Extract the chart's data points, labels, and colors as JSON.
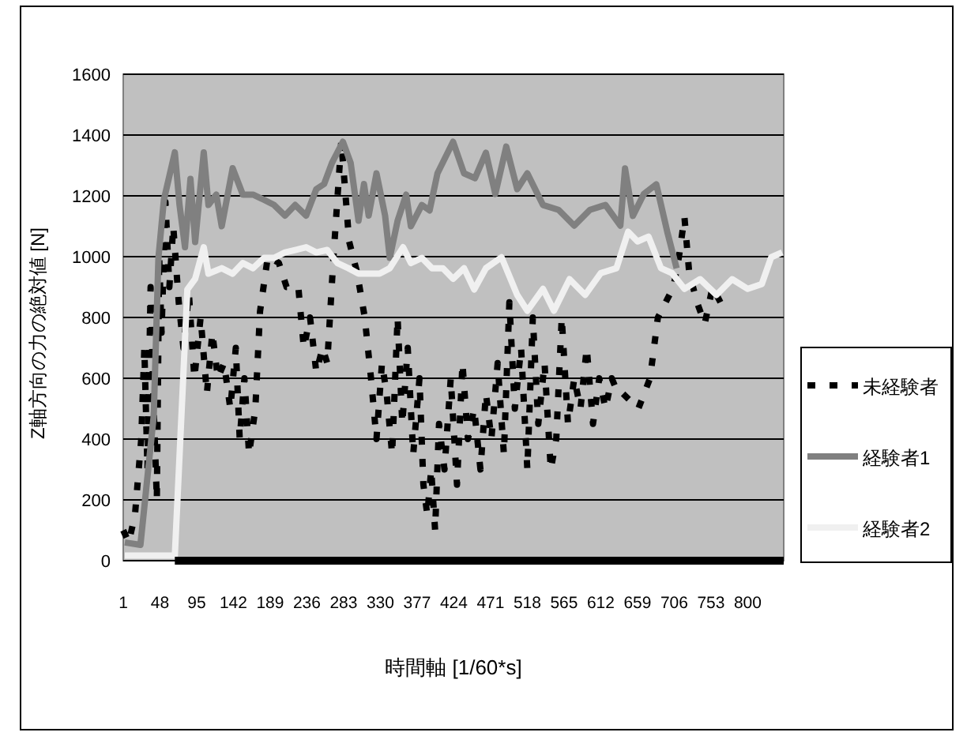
{
  "chart_data": {
    "type": "line",
    "xlabel": "時間軸 [1/60*s]",
    "ylabel": "Z軸方向の力の絶対値 [N]",
    "xlim": [
      1,
      846
    ],
    "xticks": [
      1,
      48,
      95,
      142,
      189,
      236,
      283,
      330,
      377,
      424,
      471,
      518,
      565,
      612,
      659,
      706,
      753,
      800
    ],
    "ylim": [
      0,
      1600
    ],
    "yticks": [
      0,
      200,
      400,
      600,
      800,
      1000,
      1200,
      1400,
      1600
    ],
    "grid": "y",
    "legend": "right",
    "series": [
      {
        "name": "未経験者",
        "color": "#000000",
        "line_style": "dashed",
        "x": [
          1,
          8,
          16,
          24,
          28,
          32,
          36,
          40,
          44,
          47,
          50,
          55,
          60,
          65,
          72,
          78,
          85,
          92,
          100,
          108,
          115,
          122,
          130,
          138,
          145,
          150,
          156,
          162,
          170,
          176,
          186,
          200,
          210,
          225,
          232,
          240,
          248,
          256,
          262,
          270,
          280,
          290,
          300,
          310,
          318,
          325,
          332,
          338,
          345,
          352,
          358,
          365,
          372,
          380,
          385,
          390,
          395,
          400,
          405,
          412,
          420,
          428,
          435,
          442,
          450,
          458,
          465,
          472,
          480,
          488,
          495,
          502,
          510,
          518,
          525,
          532,
          540,
          548,
          555,
          562,
          570,
          578,
          586,
          594,
          602,
          610,
          618,
          626,
          634,
          640,
          660,
          675,
          685,
          695,
          705,
          712,
          719,
          725,
          735,
          745,
          755,
          765
        ],
        "values": [
          100,
          60,
          150,
          400,
          700,
          300,
          900,
          500,
          200,
          1000,
          750,
          1180,
          900,
          1100,
          850,
          700,
          880,
          600,
          800,
          550,
          750,
          600,
          650,
          500,
          700,
          400,
          600,
          350,
          500,
          820,
          1000,
          980,
          900,
          900,
          700,
          800,
          620,
          700,
          650,
          1000,
          1380,
          1050,
          950,
          800,
          600,
          400,
          650,
          550,
          350,
          800,
          450,
          700,
          350,
          600,
          250,
          150,
          300,
          100,
          450,
          300,
          600,
          250,
          650,
          400,
          500,
          300,
          550,
          400,
          650,
          350,
          850,
          500,
          700,
          300,
          800,
          450,
          650,
          300,
          400,
          800,
          450,
          600,
          500,
          700,
          450,
          600,
          500,
          600,
          550,
          550,
          500,
          600,
          800,
          850,
          900,
          1000,
          1130,
          950,
          850,
          780,
          900,
          850
        ]
      },
      {
        "name": "経験者1",
        "color": "#808080",
        "line_style": "solid",
        "x": [
          3,
          23,
          40,
          46,
          53,
          67,
          73,
          80,
          87,
          93,
          104,
          110,
          120,
          127,
          141,
          154,
          167,
          181,
          194,
          208,
          221,
          235,
          248,
          258,
          268,
          282,
          292,
          302,
          309,
          315,
          325,
          336,
          342,
          352,
          363,
          369,
          383,
          393,
          403,
          423,
          437,
          451,
          465,
          477,
          491,
          505,
          518,
          538,
          558,
          578,
          598,
          618,
          637,
          643,
          653,
          667,
          683,
          697,
          709
        ],
        "values": [
          60,
          52,
          476,
          996,
          1187,
          1343,
          1170,
          1031,
          1256,
          1048,
          1343,
          1170,
          1204,
          1100,
          1291,
          1204,
          1204,
          1187,
          1170,
          1135,
          1170,
          1135,
          1222,
          1239,
          1308,
          1378,
          1308,
          1118,
          1239,
          1135,
          1274,
          1135,
          996,
          1118,
          1204,
          1100,
          1170,
          1152,
          1274,
          1378,
          1274,
          1258,
          1342,
          1206,
          1362,
          1222,
          1274,
          1170,
          1154,
          1102,
          1154,
          1170,
          1102,
          1290,
          1134,
          1206,
          1238,
          1082,
          962
        ]
      },
      {
        "name": "経験者2",
        "color": "#f0f0f0",
        "line_style": "solid",
        "x": [
          3,
          67,
          77,
          83,
          93,
          104,
          110,
          127,
          141,
          154,
          167,
          181,
          194,
          208,
          221,
          235,
          248,
          262,
          275,
          289,
          302,
          315,
          329,
          342,
          359,
          369,
          383,
          396,
          410,
          423,
          437,
          450,
          465,
          485,
          505,
          518,
          538,
          552,
          572,
          592,
          612,
          632,
          647,
          659,
          673,
          689,
          703,
          719,
          739,
          760,
          780,
          800,
          818,
          830,
          844
        ],
        "values": [
          17,
          17,
          563,
          892,
          927,
          1031,
          944,
          962,
          944,
          979,
          962,
          996,
          996,
          1014,
          1022,
          1031,
          1014,
          1022,
          979,
          962,
          944,
          944,
          944,
          962,
          1031,
          979,
          996,
          962,
          962,
          927,
          962,
          892,
          962,
          998,
          874,
          822,
          894,
          822,
          926,
          874,
          946,
          962,
          1082,
          1050,
          1066,
          962,
          946,
          894,
          926,
          874,
          926,
          894,
          910,
          998,
          1014
        ]
      },
      {
        "color": "#000000",
        "line_style": "solid",
        "x": [
          67,
          846
        ],
        "values": [
          0,
          0
        ]
      }
    ]
  }
}
